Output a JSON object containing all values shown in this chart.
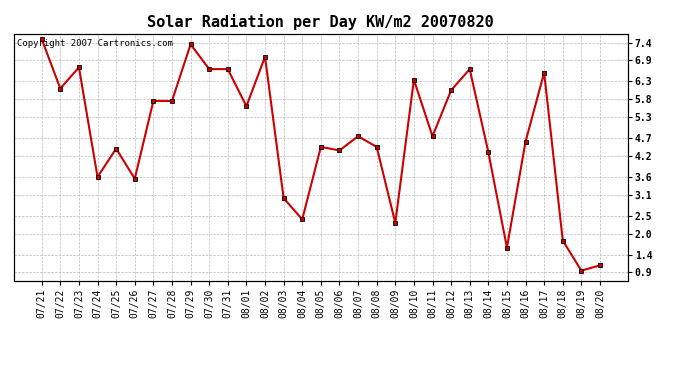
{
  "title": "Solar Radiation per Day KW/m2 20070820",
  "copyright_text": "Copyright 2007 Cartronics.com",
  "x_labels": [
    "07/21",
    "07/22",
    "07/23",
    "07/24",
    "07/25",
    "07/26",
    "07/27",
    "07/28",
    "07/29",
    "07/30",
    "07/31",
    "08/01",
    "08/02",
    "08/03",
    "08/04",
    "08/05",
    "08/06",
    "08/07",
    "08/08",
    "08/09",
    "08/10",
    "08/11",
    "08/12",
    "08/13",
    "08/14",
    "08/15",
    "08/16",
    "08/17",
    "08/18",
    "08/19",
    "08/20"
  ],
  "values": [
    7.5,
    6.1,
    6.7,
    3.6,
    4.4,
    3.55,
    5.75,
    5.75,
    7.35,
    6.65,
    6.65,
    5.6,
    7.0,
    3.0,
    2.4,
    4.45,
    4.35,
    4.75,
    4.45,
    2.3,
    6.35,
    4.75,
    6.05,
    6.65,
    4.3,
    1.6,
    4.6,
    6.55,
    1.8,
    0.95,
    1.1
  ],
  "line_color": "#cc0000",
  "marker_color": "#cc0000",
  "marker_size": 3,
  "line_width": 1.5,
  "bg_color": "#ffffff",
  "plot_bg_color": "#ffffff",
  "grid_color": "#bbbbbb",
  "ylim_min": 0.65,
  "ylim_max": 7.65,
  "yticks": [
    0.9,
    1.4,
    2.0,
    2.5,
    3.1,
    3.6,
    4.2,
    4.7,
    5.3,
    5.8,
    6.3,
    6.9,
    7.4
  ],
  "title_fontsize": 11,
  "tick_fontsize": 7,
  "copyright_fontsize": 6.5
}
